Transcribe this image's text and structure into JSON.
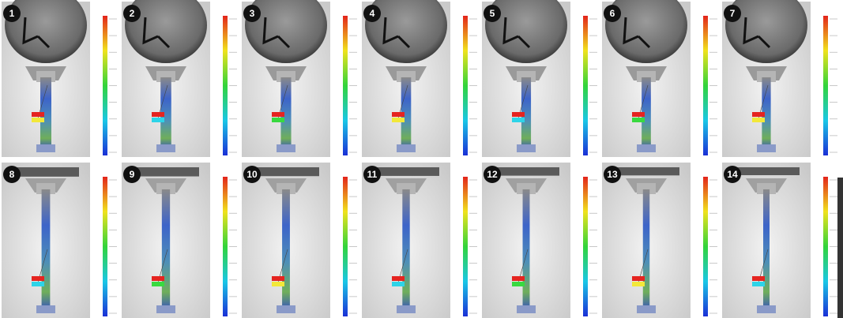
{
  "panels": [
    {
      "label": "1"
    },
    {
      "label": "2"
    },
    {
      "label": "3"
    },
    {
      "label": "4"
    },
    {
      "label": "5"
    },
    {
      "label": "6"
    },
    {
      "label": "7"
    },
    {
      "label": "8"
    },
    {
      "label": "9"
    },
    {
      "label": "10"
    },
    {
      "label": "11"
    },
    {
      "label": "12"
    },
    {
      "label": "13"
    },
    {
      "label": "14"
    }
  ]
}
